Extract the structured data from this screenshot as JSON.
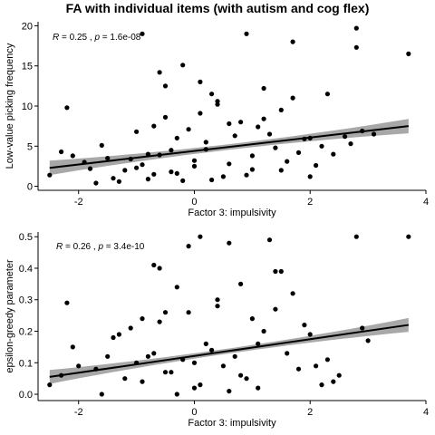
{
  "title": "FA with individual items (with autism and cog flex)",
  "colors": {
    "points": "#000000",
    "ci_band": "#999999",
    "fit_line": "#000000"
  },
  "chart_data": [
    {
      "type": "scatter",
      "xlabel": "Factor 3: impulsivity",
      "ylabel": "Low-value picking frequency",
      "xlim": [
        -2.7,
        4.0
      ],
      "ylim": [
        -0.5,
        20.5
      ],
      "x_ticks": [
        -2,
        0,
        2,
        4
      ],
      "y_ticks": [
        0,
        5,
        10,
        15,
        20
      ],
      "annotation": {
        "r": "0.25",
        "p": "1.6e-08"
      },
      "regression": {
        "x": [
          -2.5,
          3.7
        ],
        "y": [
          2.3,
          7.5
        ],
        "ci_halfwidth_ends": 0.9,
        "ci_halfwidth_center": 0.35
      },
      "points": {
        "x": [
          -2.2,
          -1.9,
          -1.5,
          -1.2,
          -0.9,
          -0.8,
          -0.7,
          -0.6,
          -0.5,
          -0.3,
          -0.2,
          0.1,
          0.3,
          0.4,
          0.8,
          0.9,
          1.2,
          1.5,
          1.7,
          2.0,
          2.3,
          2.8,
          2.8,
          3.7,
          -1.0,
          -0.7,
          -0.4,
          0.0,
          0.2,
          0.6,
          1.0,
          1.3,
          1.8,
          2.2,
          2.6,
          -2.5,
          -2.3,
          -2.1,
          -1.8,
          -1.6,
          -1.4,
          -1.1,
          -1.0,
          -0.9,
          -0.6,
          -0.4,
          -0.1,
          0.0,
          0.2,
          0.5,
          0.7,
          1.0,
          1.1,
          1.4,
          1.6,
          1.9,
          2.1,
          2.4,
          2.7,
          2.9,
          3.1,
          -1.3,
          -0.8,
          -0.3,
          0.3,
          0.9,
          1.5,
          2.0,
          -0.5,
          0.1,
          0.6,
          1.2,
          -1.7,
          -0.2,
          0.4,
          1.7
        ],
        "y": [
          9.8,
          3.0,
          3.5,
          2.0,
          19.0,
          4.0,
          7.5,
          14.2,
          12.5,
          6.0,
          15.1,
          13.0,
          11.5,
          10.2,
          8.0,
          19.0,
          12.2,
          9.5,
          18.0,
          6.0,
          11.5,
          19.7,
          17.3,
          16.5,
          2.3,
          1.5,
          4.5,
          3.2,
          5.5,
          2.8,
          3.8,
          6.5,
          4.2,
          5.0,
          6.2,
          1.4,
          4.3,
          3.8,
          2.2,
          5.1,
          1.0,
          3.4,
          6.8,
          2.7,
          3.9,
          1.8,
          7.1,
          2.5,
          4.6,
          1.2,
          6.3,
          2.1,
          7.4,
          4.8,
          3.1,
          5.9,
          2.6,
          4.0,
          5.3,
          6.9,
          6.5,
          0.6,
          0.9,
          1.6,
          0.8,
          1.4,
          2.0,
          1.2,
          8.6,
          9.1,
          7.8,
          8.4,
          0.4,
          0.7,
          10.6,
          11.0
        ]
      }
    },
    {
      "type": "scatter",
      "xlabel": "Factor 3: impulsivity",
      "ylabel": "epsilon-greedy parameter",
      "xlim": [
        -2.7,
        4.0
      ],
      "ylim": [
        -0.02,
        0.515
      ],
      "x_ticks": [
        -2,
        0,
        2,
        4
      ],
      "y_ticks": [
        0.0,
        0.1,
        0.2,
        0.3,
        0.4,
        0.5
      ],
      "annotation": {
        "r": "0.26",
        "p": "3.4e-10"
      },
      "regression": {
        "x": [
          -2.5,
          3.7
        ],
        "y": [
          0.055,
          0.22
        ],
        "ci_halfwidth_ends": 0.022,
        "ci_halfwidth_center": 0.008
      },
      "points": {
        "x": [
          -2.2,
          -2.1,
          -1.4,
          -1.3,
          -0.9,
          -0.7,
          -0.6,
          -0.5,
          -0.3,
          -0.1,
          0.1,
          0.4,
          0.6,
          1.3,
          1.4,
          1.5,
          2.8,
          3.7,
          -0.8,
          -0.4,
          0.0,
          0.3,
          0.8,
          1.1,
          2.1,
          -2.5,
          -2.3,
          -2.0,
          -1.7,
          -1.5,
          -1.2,
          -1.0,
          -0.9,
          -0.7,
          -0.5,
          -0.2,
          0.0,
          0.2,
          0.5,
          0.7,
          0.9,
          1.2,
          1.6,
          1.8,
          2.0,
          2.3,
          2.5,
          2.9,
          3.0,
          -1.1,
          -0.6,
          -0.1,
          0.4,
          1.0,
          1.4,
          1.9,
          2.2,
          -0.3,
          0.6,
          1.1,
          -1.6,
          0.1,
          0.8,
          1.7,
          2.4
        ],
        "y": [
          0.29,
          0.15,
          0.18,
          0.19,
          0.24,
          0.41,
          0.4,
          0.26,
          0.34,
          0.47,
          0.5,
          0.28,
          0.48,
          0.49,
          0.39,
          0.39,
          0.5,
          0.5,
          0.12,
          0.07,
          0.1,
          0.14,
          0.06,
          0.16,
          0.09,
          0.03,
          0.06,
          0.09,
          0.08,
          0.12,
          0.05,
          0.1,
          0.04,
          0.13,
          0.07,
          0.11,
          0.02,
          0.16,
          0.09,
          0.12,
          0.05,
          0.2,
          0.13,
          0.08,
          0.19,
          0.11,
          0.06,
          0.21,
          0.17,
          0.21,
          0.23,
          0.26,
          0.3,
          0.24,
          0.27,
          0.22,
          0.03,
          0.0,
          0.01,
          0.02,
          0.0,
          0.03,
          0.35,
          0.32,
          0.04
        ]
      }
    }
  ]
}
